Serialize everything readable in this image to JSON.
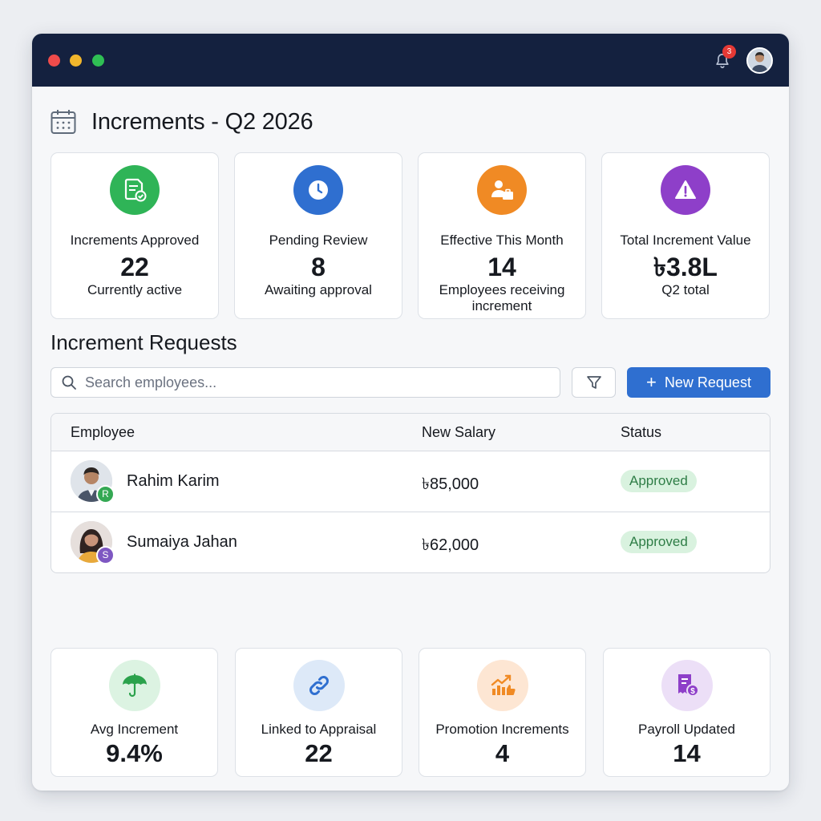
{
  "header": {
    "notification_count": "3",
    "accent_color": "#14213f"
  },
  "page": {
    "title": "Increments - Q2 2026"
  },
  "stats": [
    {
      "label": "Increments Approved",
      "value": "22",
      "sub": "Currently active",
      "icon": "document-check-icon",
      "color": "#2fb457"
    },
    {
      "label": "Pending Review",
      "value": "8",
      "sub": "Awaiting approval",
      "icon": "clock-icon",
      "color": "#2f6fd0"
    },
    {
      "label": "Effective This Month",
      "value": "14",
      "sub": "Employees receiving increment",
      "icon": "person-briefcase-icon",
      "color": "#f08a24"
    },
    {
      "label": "Total Increment Value",
      "value": "৳3.8L",
      "sub": "Q2 total",
      "icon": "warning-icon",
      "color": "#8e3fc9"
    }
  ],
  "requests": {
    "title": "Increment Requests",
    "search_placeholder": "Search employees...",
    "new_button": "New Request",
    "columns": [
      "Employee",
      "New Salary",
      "Status"
    ],
    "rows": [
      {
        "initial": "R",
        "name": "Rahim Karim",
        "salary": "৳85,000",
        "status": "Approved",
        "initial_color": "#34a853"
      },
      {
        "initial": "S",
        "name": "Sumaiya Jahan",
        "salary": "৳62,000",
        "status": "Approved",
        "initial_color": "#7e57c2"
      }
    ]
  },
  "summary": [
    {
      "label": "Avg Increment",
      "value": "9.4%",
      "icon": "umbrella-icon",
      "bg": "#dcf3e2"
    },
    {
      "label": "Linked to Appraisal",
      "value": "22",
      "icon": "link-icon",
      "bg": "#dde9f8"
    },
    {
      "label": "Promotion Increments",
      "value": "4",
      "icon": "growth-icon",
      "bg": "#fde6d3"
    },
    {
      "label": "Payroll Updated",
      "value": "14",
      "icon": "payroll-icon",
      "bg": "#ecdff7"
    }
  ]
}
